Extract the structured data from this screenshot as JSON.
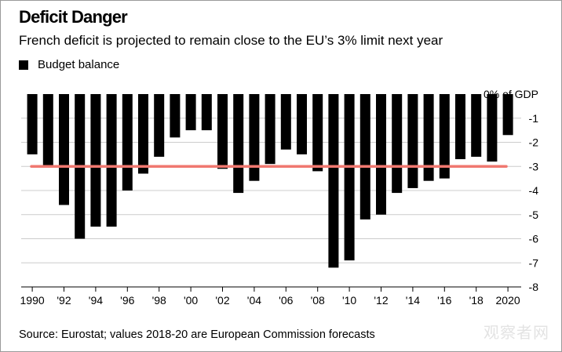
{
  "title": "Deficit Danger",
  "subtitle": "French deficit is projected to remain close to the EU’s 3% limit next year",
  "legend": {
    "label": "Budget balance"
  },
  "source": "Source: Eurostat; values 2018-20 are European Commission forecasts",
  "watermark": "观察者网",
  "colors": {
    "bars": "#000000",
    "limit_line": "#f07870",
    "grid": "#cccccc"
  },
  "chart_data": {
    "type": "bar",
    "title": "Deficit Danger",
    "ylabel": "% of GDP",
    "ylim": [
      -8,
      0
    ],
    "y_ticks": [
      {
        "value": 0,
        "label": "0% of GDP"
      },
      {
        "value": -1,
        "label": "-1"
      },
      {
        "value": -2,
        "label": "-2"
      },
      {
        "value": -3,
        "label": "-3"
      },
      {
        "value": -4,
        "label": "-4"
      },
      {
        "value": -5,
        "label": "-5"
      },
      {
        "value": -6,
        "label": "-6"
      },
      {
        "value": -7,
        "label": "-7"
      },
      {
        "value": -8,
        "label": "-8"
      }
    ],
    "x_tick_labels": [
      {
        "year": 1990,
        "label": "1990"
      },
      {
        "year": 1992,
        "label": "'92"
      },
      {
        "year": 1994,
        "label": "'94"
      },
      {
        "year": 1996,
        "label": "'96"
      },
      {
        "year": 1998,
        "label": "'98"
      },
      {
        "year": 2000,
        "label": "'00"
      },
      {
        "year": 2002,
        "label": "'02"
      },
      {
        "year": 2004,
        "label": "'04"
      },
      {
        "year": 2006,
        "label": "'06"
      },
      {
        "year": 2008,
        "label": "'08"
      },
      {
        "year": 2010,
        "label": "'10"
      },
      {
        "year": 2012,
        "label": "'12"
      },
      {
        "year": 2014,
        "label": "'14"
      },
      {
        "year": 2016,
        "label": "'16"
      },
      {
        "year": 2018,
        "label": "'18"
      },
      {
        "year": 2020,
        "label": "2020"
      }
    ],
    "categories": [
      1990,
      1991,
      1992,
      1993,
      1994,
      1995,
      1996,
      1997,
      1998,
      1999,
      2000,
      2001,
      2002,
      2003,
      2004,
      2005,
      2006,
      2007,
      2008,
      2009,
      2010,
      2011,
      2012,
      2013,
      2014,
      2015,
      2016,
      2017,
      2018,
      2019,
      2020
    ],
    "series": [
      {
        "name": "Budget balance",
        "values": [
          -2.5,
          -3.0,
          -4.6,
          -6.0,
          -5.5,
          -5.5,
          -4.0,
          -3.3,
          -2.6,
          -1.8,
          -1.5,
          -1.5,
          -3.1,
          -4.1,
          -3.6,
          -2.9,
          -2.3,
          -2.5,
          -3.2,
          -7.2,
          -6.9,
          -5.2,
          -5.0,
          -4.1,
          -3.9,
          -3.6,
          -3.5,
          -2.7,
          -2.6,
          -2.8,
          -1.7
        ]
      }
    ],
    "reference_line": {
      "value": -3,
      "name": "EU 3% limit"
    }
  }
}
